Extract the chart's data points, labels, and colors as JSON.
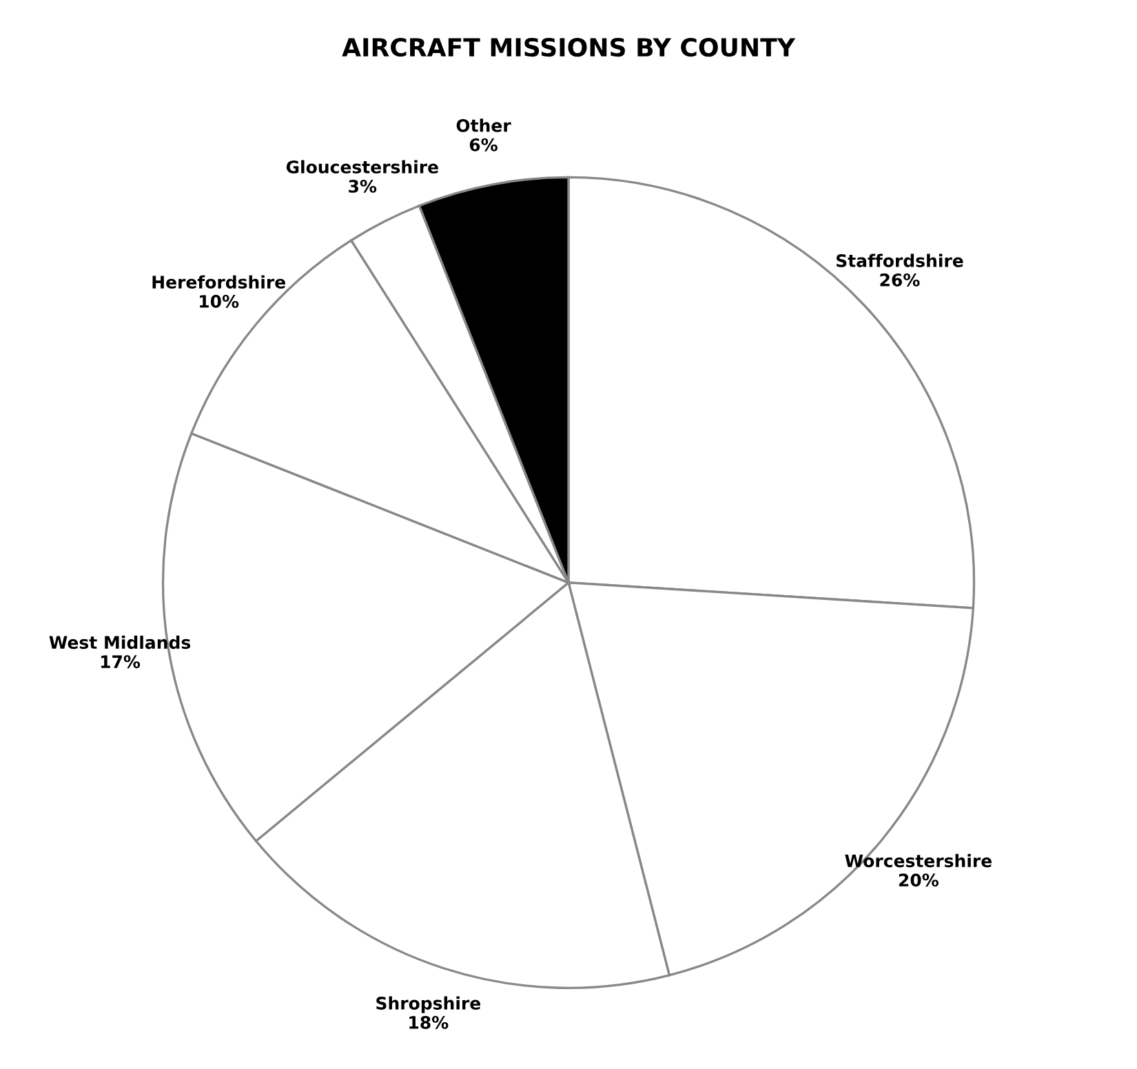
{
  "chart_data": {
    "type": "pie",
    "title": "AIRCRAFT MISSIONS BY COUNTY",
    "categories": [
      "Staffordshire",
      "Worcestershire",
      "Shropshire",
      "West Midlands",
      "Herefordshire",
      "Gloucestershire",
      "Other"
    ],
    "values": [
      26,
      20,
      18,
      17,
      10,
      3,
      6
    ],
    "value_labels": [
      "26%",
      "20%",
      "18%",
      "17%",
      "10%",
      "3%",
      "6%"
    ],
    "colors": [
      "#ffffff",
      "#ffffff",
      "#ffffff",
      "#ffffff",
      "#ffffff",
      "#ffffff",
      "#000000"
    ]
  }
}
